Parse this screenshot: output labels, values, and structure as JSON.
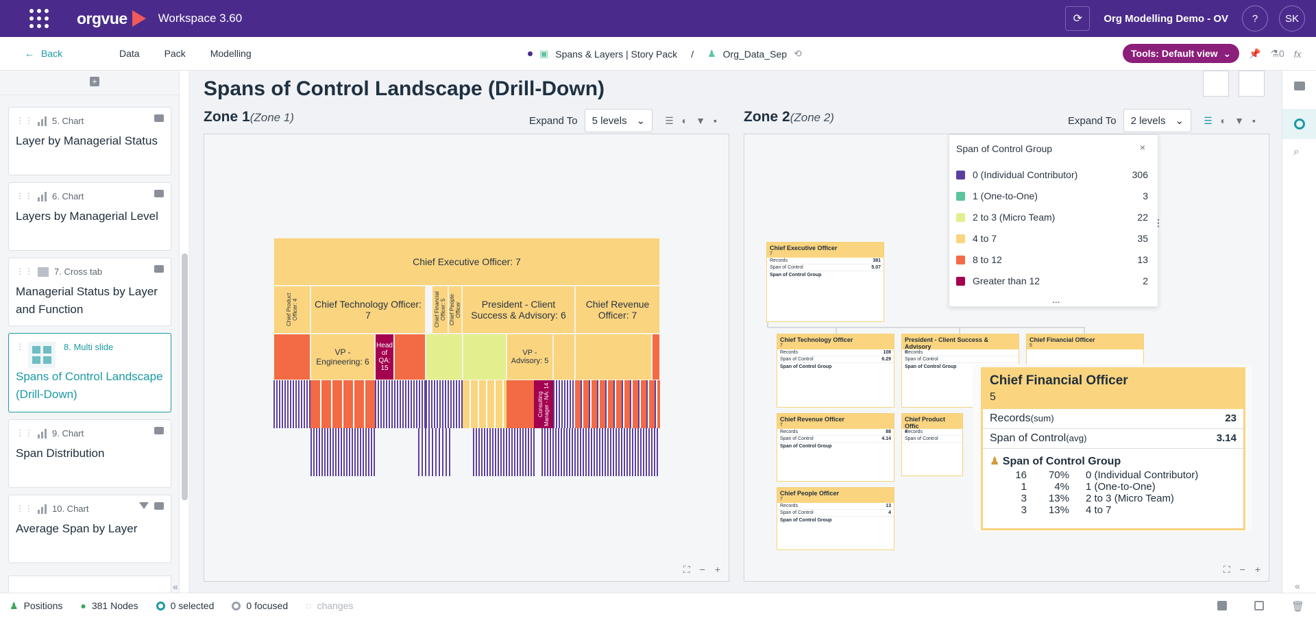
{
  "app": {
    "logo": "orgvue",
    "workspace": "Workspace  3.60",
    "demo": "Org Modelling Demo - OV",
    "help": "?",
    "avatar": "SK"
  },
  "nav": {
    "back": "Back",
    "links": [
      "Data",
      "Pack",
      "Modelling"
    ],
    "crumb1": "Spans & Layers | Story Pack",
    "sep": "/",
    "crumb2": "Org_Data_Sep",
    "tools": "Tools: Default view",
    "flask_count": "0",
    "fx": "fx"
  },
  "sidebar": {
    "cards": [
      {
        "type": "5. Chart",
        "title": "Layer by Managerial Status"
      },
      {
        "type": "6. Chart",
        "title": "Layers by Managerial Level"
      },
      {
        "type": "7. Cross tab",
        "title": "Managerial Status by Layer and Function"
      },
      {
        "type": "8. Multi slide",
        "title": "Spans of Control Landscape (Drill-Down)"
      },
      {
        "type": "9. Chart",
        "title": "Span Distribution"
      },
      {
        "type": "10. Chart",
        "title": "Average Span by Layer"
      }
    ]
  },
  "page": {
    "title": "Spans of Control Landscape (Drill-Down)"
  },
  "zone1": {
    "title": "Zone 1",
    "sub": "(Zone 1)",
    "expand_label": "Expand To",
    "levels": "5 levels"
  },
  "zone2": {
    "title": "Zone 2",
    "sub": "(Zone 2)",
    "expand_label": "Expand To",
    "levels": "2 levels"
  },
  "treemap": {
    "root": "Chief Executive Officer: 7",
    "l1": [
      "Chief Product Officer: 4",
      "Chief Technology Officer: 7",
      "Chief Financial Officer: 5",
      "Chief People Officer",
      "President -  Client Success & Advisory: 6",
      "Chief Revenue Officer: 7"
    ],
    "l2": [
      "VP - Engineering: 6",
      "Head of QA: 15",
      "VP - Advisory: 5",
      "Consulting Manager - NA: 14"
    ]
  },
  "legend": {
    "title": "Span of Control Group",
    "close": "×",
    "more": "...",
    "items": [
      {
        "label": "0 (Individual Contributor)",
        "count": "306",
        "color": "#5b3fa0"
      },
      {
        "label": "1 (One-to-One)",
        "count": "3",
        "color": "#5ec4a0"
      },
      {
        "label": "2 to 3 (Micro Team)",
        "count": "22",
        "color": "#e3ef8f"
      },
      {
        "label": "4 to 7",
        "count": "35",
        "color": "#fad47f"
      },
      {
        "label": "8 to 12",
        "count": "13",
        "color": "#f26b45"
      },
      {
        "label": "Greater than 12",
        "count": "2",
        "color": "#a3004f"
      }
    ]
  },
  "orgcards": {
    "ceo": {
      "name": "Chief Executive Officer",
      "n": "7",
      "records": "381",
      "span": "5.07"
    },
    "cto": {
      "name": "Chief Technology Officer",
      "n": "7",
      "records": "108",
      "span": "6.29"
    },
    "pres": {
      "name": "President -  Client Success & Advisory",
      "n": "6"
    },
    "cfo_small": {
      "name": "Chief Financial Officer",
      "n": "5"
    },
    "cro": {
      "name": "Chief Revenue Officer",
      "n": "7",
      "records": "88",
      "span": "4.14"
    },
    "cpo": {
      "name": "Chief Product Offic",
      "n": "4"
    },
    "cpeo": {
      "name": "Chief People Officer",
      "n": "7",
      "records": "13",
      "span": "4"
    },
    "labels": {
      "records": "Records",
      "span": "Span of Control",
      "group": "Span of Control Group"
    }
  },
  "cfo": {
    "name": "Chief Financial Officer",
    "n": "5",
    "records_label": "Records",
    "records_sub": "(sum)",
    "records": "23",
    "span_label": "Span of Control",
    "span_sub": "(avg)",
    "span": "3.14",
    "group": "Span of Control Group",
    "rows": [
      {
        "c": "16",
        "p": "70%",
        "l": "0 (Individual Contributor)"
      },
      {
        "c": "1",
        "p": "4%",
        "l": "1 (One-to-One)"
      },
      {
        "c": "3",
        "p": "13%",
        "l": "2 to 3 (Micro Team)"
      },
      {
        "c": "3",
        "p": "13%",
        "l": "4 to 7"
      }
    ]
  },
  "status": {
    "positions": "Positions",
    "nodes": "381 Nodes",
    "selected": "0 selected",
    "focused": "0 focused",
    "changes": "changes"
  }
}
